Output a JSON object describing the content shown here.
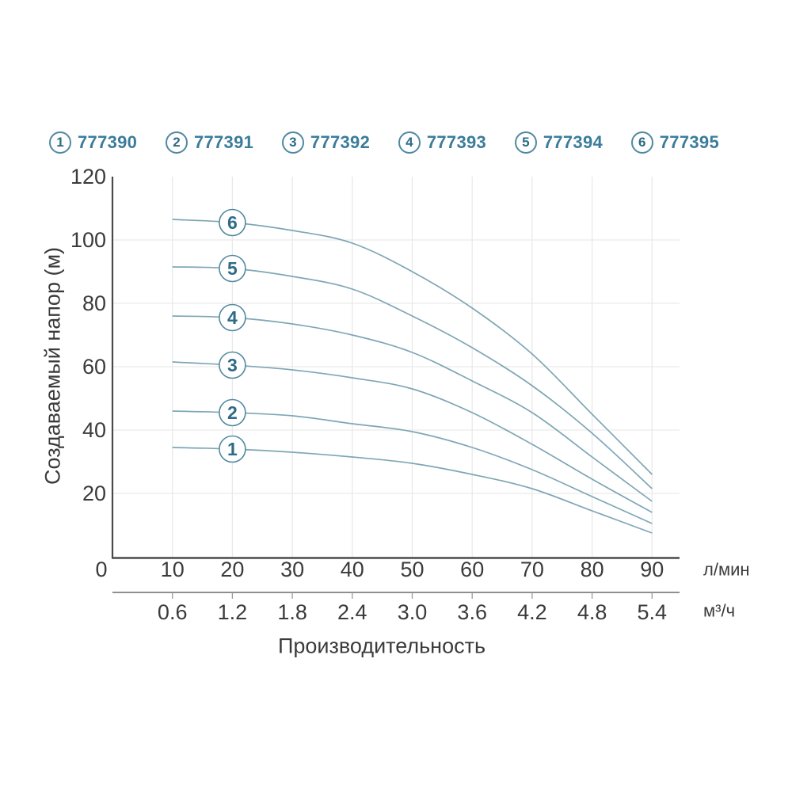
{
  "legend": {
    "items": [
      {
        "num": "1",
        "code": "777390"
      },
      {
        "num": "2",
        "code": "777391"
      },
      {
        "num": "3",
        "code": "777392"
      },
      {
        "num": "4",
        "code": "777393"
      },
      {
        "num": "5",
        "code": "777394"
      },
      {
        "num": "6",
        "code": "777395"
      }
    ]
  },
  "colors": {
    "curve": "#7ea6b6",
    "accent_text": "#3c7c9b",
    "badge_text": "#2e6b86",
    "circle_border": "#5189a0",
    "grid": "#e9e9e9",
    "axis": "#4a4a4a",
    "axis_secondary": "#6a6a6a",
    "tick_mark": "#9a9a9a",
    "tick_text": "#3b3b3b"
  },
  "chart_data": {
    "type": "line",
    "title": "",
    "xlabel": "Производительность",
    "ylabel": "Создаваемый напор (м)",
    "grid": true,
    "legend_position": "top",
    "x_primary": {
      "unit": "л/мин",
      "ticks": [
        0,
        10,
        20,
        30,
        40,
        50,
        60,
        70,
        80,
        90
      ]
    },
    "x_secondary": {
      "unit": "м³/ч",
      "ticks": [
        "0.6",
        "1.2",
        "1.8",
        "2.4",
        "3.0",
        "3.6",
        "4.2",
        "4.8",
        "5.4"
      ]
    },
    "y_axis": {
      "ticks": [
        20,
        40,
        60,
        80,
        100,
        120
      ],
      "range": [
        0,
        120
      ]
    },
    "xlim_lmin": [
      0,
      90
    ],
    "badge_at_x": 20,
    "series": [
      {
        "label": "1",
        "name": "777390",
        "x": [
          10,
          20,
          30,
          40,
          50,
          60,
          70,
          80,
          90
        ],
        "y": [
          34.5,
          34.0,
          33.0,
          31.5,
          29.5,
          26.0,
          21.5,
          14.5,
          7.5
        ]
      },
      {
        "label": "2",
        "name": "777391",
        "x": [
          10,
          20,
          30,
          40,
          50,
          60,
          70,
          80,
          90
        ],
        "y": [
          46.0,
          45.5,
          44.5,
          42.0,
          39.5,
          34.5,
          27.5,
          19.0,
          10.5
        ]
      },
      {
        "label": "3",
        "name": "777392",
        "x": [
          10,
          20,
          30,
          40,
          50,
          60,
          70,
          80,
          90
        ],
        "y": [
          61.5,
          60.5,
          59.0,
          56.5,
          53.0,
          45.5,
          35.5,
          24.5,
          14.0
        ]
      },
      {
        "label": "4",
        "name": "777393",
        "x": [
          10,
          20,
          30,
          40,
          50,
          60,
          70,
          80,
          90
        ],
        "y": [
          76.0,
          75.5,
          73.5,
          70.0,
          64.5,
          55.5,
          45.5,
          31.5,
          17.5
        ]
      },
      {
        "label": "5",
        "name": "777394",
        "x": [
          10,
          20,
          30,
          40,
          50,
          60,
          70,
          80,
          90
        ],
        "y": [
          91.5,
          91.0,
          88.5,
          84.5,
          76.0,
          66.0,
          54.0,
          39.0,
          21.5
        ]
      },
      {
        "label": "6",
        "name": "777395",
        "x": [
          10,
          20,
          30,
          40,
          50,
          60,
          70,
          80,
          90
        ],
        "y": [
          106.5,
          105.5,
          103.0,
          99.0,
          90.0,
          78.5,
          64.0,
          45.0,
          26.0
        ]
      }
    ]
  }
}
